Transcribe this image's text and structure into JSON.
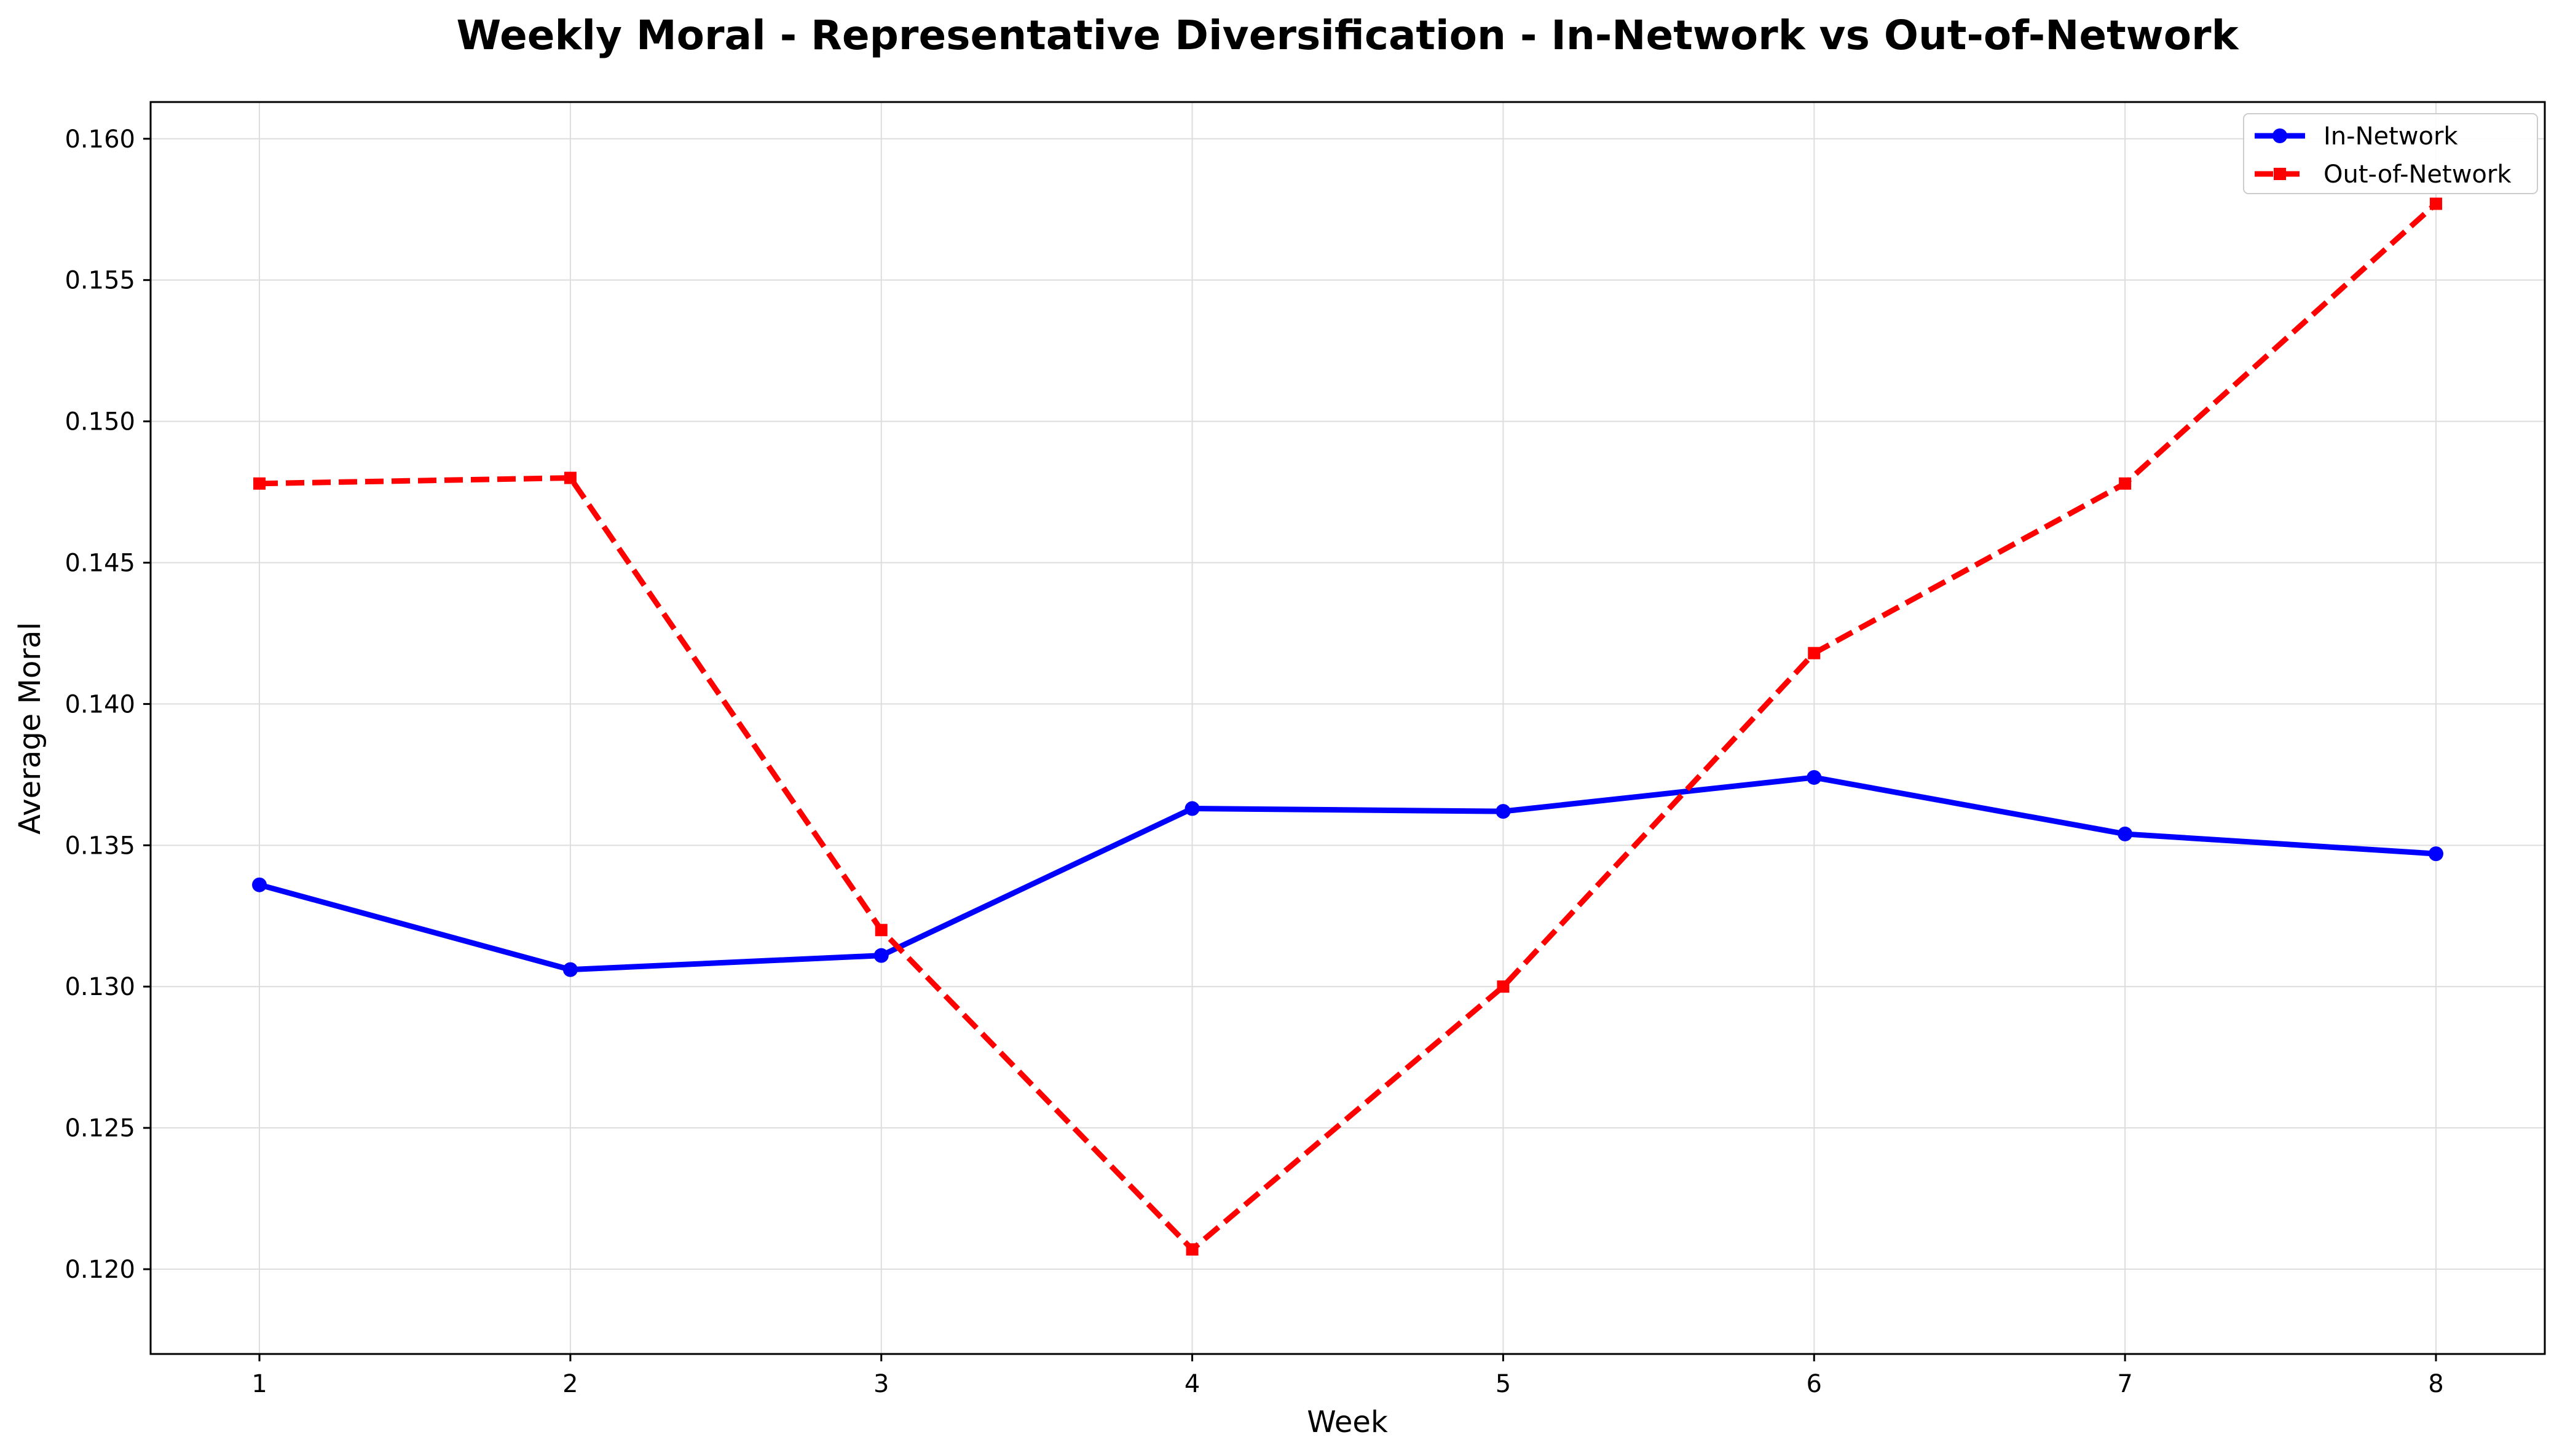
{
  "chart_data": {
    "type": "line",
    "title": "Weekly Moral - Representative Diversification - In-Network vs Out-of-Network",
    "xlabel": "Week",
    "ylabel": "Average Moral",
    "x": [
      1,
      2,
      3,
      4,
      5,
      6,
      7,
      8
    ],
    "xlim": [
      0.65,
      8.35
    ],
    "ylim": [
      0.117,
      0.1613
    ],
    "xticks": [
      1,
      2,
      3,
      4,
      5,
      6,
      7,
      8
    ],
    "yticks": [
      0.12,
      0.125,
      0.13,
      0.135,
      0.14,
      0.145,
      0.15,
      0.155,
      0.16
    ],
    "grid": true,
    "legend_position": "top-right",
    "series": [
      {
        "name": "In-Network",
        "color": "#0000ff",
        "line_style": "solid",
        "marker": "circle",
        "values": [
          0.1336,
          0.1306,
          0.1311,
          0.1363,
          0.1362,
          0.1374,
          0.1354,
          0.1347
        ]
      },
      {
        "name": "Out-of-Network",
        "color": "#ff0000",
        "line_style": "dashed",
        "marker": "square",
        "values": [
          0.1478,
          0.148,
          0.132,
          0.1207,
          0.13,
          0.1418,
          0.1478,
          0.1577
        ]
      }
    ]
  }
}
